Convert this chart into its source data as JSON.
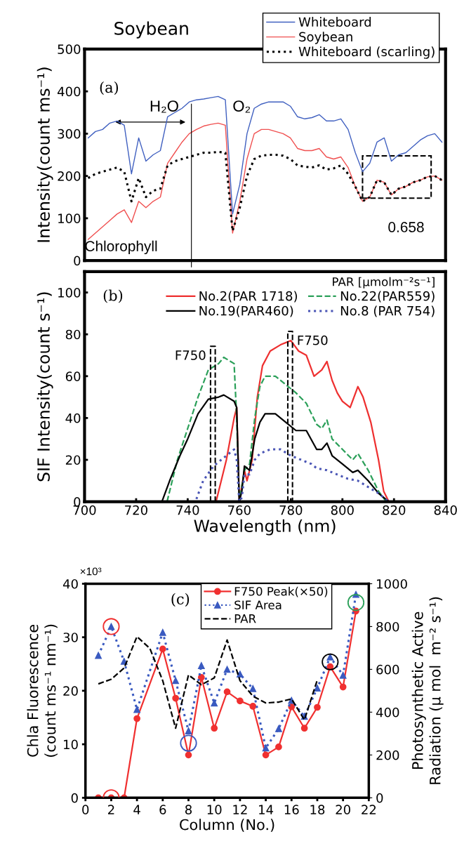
{
  "chart_data": [
    {
      "type": "line",
      "title": "Soybean",
      "ylabel": "Intensity(count ms⁻¹)",
      "categories": [
        null,
        null,
        null,
        null,
        null,
        null,
        null,
        null,
        null,
        null,
        null,
        null,
        null,
        null,
        null,
        null,
        null,
        null,
        null,
        null,
        null,
        null,
        null,
        null,
        null,
        null,
        null,
        null,
        null,
        null,
        null,
        null,
        null,
        null,
        null,
        null,
        null,
        null,
        null,
        null,
        null,
        null,
        null,
        null,
        null,
        null,
        null,
        null,
        null,
        null
      ],
      "series": [
        {
          "name": "Whiteboard",
          "color": "#4060c0",
          "line_style": "solid",
          "values": [
            290,
            305,
            310,
            325,
            330,
            320,
            205,
            290,
            235,
            250,
            260,
            340,
            350,
            360,
            375,
            380,
            382,
            385,
            388,
            380,
            110,
            180,
            300,
            360,
            370,
            375,
            375,
            375,
            365,
            340,
            335,
            338,
            345,
            330,
            330,
            335,
            310,
            255,
            210,
            230,
            280,
            290,
            235,
            250,
            255,
            270,
            285,
            295,
            300,
            280
          ]
        },
        {
          "name": "Soybean",
          "color": "#f05050",
          "line_style": "solid",
          "values": [
            50,
            65,
            80,
            95,
            110,
            120,
            90,
            140,
            125,
            140,
            150,
            230,
            255,
            280,
            300,
            310,
            318,
            322,
            325,
            320,
            65,
            140,
            240,
            300,
            310,
            310,
            305,
            300,
            290,
            265,
            260,
            260,
            265,
            245,
            240,
            245,
            220,
            175,
            140,
            150,
            190,
            185,
            155,
            170,
            175,
            185,
            190,
            198,
            200,
            190
          ]
        },
        {
          "name": "Whiteboard (scarling)",
          "color": "#000000",
          "line_style": "dotted",
          "values": [
            195,
            205,
            210,
            215,
            220,
            210,
            140,
            195,
            150,
            165,
            170,
            225,
            235,
            240,
            245,
            250,
            255,
            255,
            257,
            255,
            70,
            125,
            200,
            240,
            248,
            250,
            250,
            248,
            240,
            225,
            222,
            220,
            225,
            215,
            218,
            225,
            205,
            175,
            140,
            150,
            190,
            185,
            155,
            170,
            175,
            185,
            190,
            198,
            200,
            190
          ]
        }
      ],
      "ylim": [
        0,
        500
      ],
      "yticks": [
        0,
        100,
        200,
        300,
        400,
        500
      ],
      "tick_labels": "y",
      "legend": "top right",
      "annotations": [
        "(a)",
        "H₂O",
        "O₂",
        "Chlorophyll",
        "0.658"
      ]
    },
    {
      "type": "line",
      "xlabel": "Wavelength (nm)",
      "ylabel": "SIF Intensity(count s⁻¹)",
      "legend_title": "PAR [μmolm⁻²s⁻¹]",
      "series": [
        {
          "name": "No.2(PAR 1718)",
          "color": "#ee3030",
          "line_style": "solid",
          "x": [
            700,
            751,
            755,
            758,
            759,
            760,
            762,
            763,
            765,
            767,
            769,
            772,
            776,
            780,
            783,
            786,
            789,
            792,
            794,
            796,
            798,
            800,
            803,
            806,
            808,
            811,
            814,
            816,
            818,
            840
          ],
          "values": [
            0,
            0,
            20,
            40,
            45,
            0,
            15,
            10,
            20,
            50,
            65,
            72,
            75,
            77,
            72,
            70,
            60,
            63,
            67,
            58,
            52,
            48,
            45,
            55,
            50,
            38,
            20,
            5,
            0,
            0
          ]
        },
        {
          "name": "No.22(PAR559)",
          "color": "#2ca05a",
          "line_style": "dashed",
          "x": [
            700,
            732,
            736,
            740,
            744,
            748,
            752,
            754,
            758,
            759,
            760,
            762,
            764,
            766,
            768,
            770,
            774,
            778,
            782,
            786,
            790,
            792,
            794,
            796,
            800,
            804,
            806,
            810,
            814,
            817,
            840
          ],
          "values": [
            0,
            0,
            20,
            35,
            50,
            63,
            66,
            69,
            66,
            40,
            0,
            15,
            18,
            40,
            55,
            60,
            60,
            56,
            52,
            47,
            37,
            35,
            39,
            30,
            25,
            20,
            23,
            15,
            5,
            0,
            0
          ]
        },
        {
          "name": "No.19(PAR460)",
          "color": "#000000",
          "line_style": "solid",
          "x": [
            700,
            730,
            733,
            737,
            740,
            744,
            748,
            752,
            754,
            758,
            759,
            760,
            761,
            762,
            764,
            766,
            768,
            770,
            774,
            778,
            782,
            786,
            790,
            792,
            794,
            796,
            800,
            804,
            806,
            810,
            814,
            818,
            840
          ],
          "values": [
            0,
            0,
            10,
            22,
            30,
            42,
            49,
            50,
            51,
            48,
            45,
            0,
            5,
            17,
            15,
            30,
            38,
            42,
            42,
            38,
            34,
            34,
            25,
            25,
            28,
            22,
            18,
            14,
            15,
            10,
            4,
            0,
            0
          ]
        },
        {
          "name": "No.8 (PAR 754)",
          "color": "#4a55b5",
          "line_style": "dotted",
          "x": [
            700,
            743,
            746,
            750,
            754,
            758,
            759,
            760,
            761,
            762,
            764,
            766,
            768,
            772,
            776,
            780,
            784,
            788,
            790,
            794,
            798,
            802,
            806,
            810,
            814,
            818,
            840
          ],
          "values": [
            0,
            0,
            10,
            17,
            21,
            25,
            20,
            0,
            2,
            13,
            13,
            20,
            23,
            25,
            25,
            22,
            20,
            18,
            16,
            15,
            13,
            11,
            10,
            7,
            4,
            0,
            0
          ]
        }
      ],
      "xlim": [
        700,
        840
      ],
      "xticks": [
        700,
        720,
        740,
        760,
        780,
        800,
        820,
        840
      ],
      "ylim": [
        0,
        110
      ],
      "yticks": [
        0,
        20,
        40,
        60,
        80,
        100
      ],
      "legend": "top right",
      "annotations": [
        "(b)",
        "F750",
        "F750"
      ]
    },
    {
      "type": "line",
      "xlabel": "Column (No.)",
      "ylabel": "Chla Fluorescence\n(count ms⁻¹ nm⁻¹)",
      "y2label": "Photosynthetic Active\nRadiation (μ mol  m⁻² s⁻¹)",
      "series": [
        {
          "name": "F750 Peak(×50)",
          "color": "#f03030",
          "line_style": "solid",
          "marker": "circle",
          "x": [
            1,
            2,
            3,
            4,
            6,
            7,
            8,
            9,
            10,
            11,
            12,
            13,
            14,
            15,
            16,
            17,
            18,
            19,
            20,
            21
          ],
          "values": [
            0,
            0,
            0,
            14.8,
            27.8,
            18.6,
            8.0,
            22.5,
            13.0,
            19.8,
            18.1,
            17.1,
            8.0,
            9.5,
            17.0,
            13.0,
            16.9,
            24.5,
            20.7,
            34.9
          ]
        },
        {
          "name": "SIF Area",
          "color": "#3a5ac0",
          "line_style": "dotted",
          "marker": "triangle",
          "x": [
            1,
            2,
            3,
            4,
            6,
            7,
            8,
            9,
            10,
            11,
            12,
            13,
            14,
            15,
            16,
            17,
            18,
            19,
            20,
            21
          ],
          "values": [
            26.6,
            32.0,
            25.5,
            16.5,
            30.9,
            21.9,
            12.5,
            24.7,
            17.7,
            24.0,
            23.1,
            20.4,
            9.3,
            12.9,
            18.2,
            15.2,
            20.5,
            26.3,
            22.9,
            38.0
          ]
        },
        {
          "name": "PAR",
          "color": "#000000",
          "line_style": "dashed",
          "axis": "y2",
          "x": [
            1,
            2,
            3,
            4,
            5,
            6,
            7,
            8,
            9,
            10,
            11,
            12,
            13,
            14,
            15,
            16,
            17,
            18
          ],
          "values": [
            532,
            554,
            606,
            753,
            698,
            547,
            325,
            574,
            528,
            560,
            737,
            547,
            475,
            443,
            447,
            462,
            364,
            550
          ]
        },
        {
          "type": "scatter",
          "color": "#000000",
          "colors": [
            "#f03030",
            "#f03030",
            "#3a5ac0",
            "#000000",
            "#2ca05a"
          ],
          "x": [
            2,
            2,
            8,
            19,
            21
          ],
          "values": [
            32.0,
            0,
            10.2,
            25.4,
            36.5
          ],
          "sizes": [
            1,
            1,
            1,
            1,
            1
          ]
        }
      ],
      "xlim": [
        0,
        22
      ],
      "xticks": [
        0,
        2,
        4,
        6,
        8,
        10,
        12,
        14,
        16,
        18,
        20,
        22
      ],
      "ylim": [
        0,
        40
      ],
      "yticks": [
        0,
        10,
        20,
        30,
        40
      ],
      "y2lim": [
        0,
        1000
      ],
      "y2ticks": [
        0,
        200,
        400,
        600,
        800,
        1000
      ],
      "legend": "top right",
      "annotations": [
        "(c)",
        "×10³"
      ]
    }
  ]
}
